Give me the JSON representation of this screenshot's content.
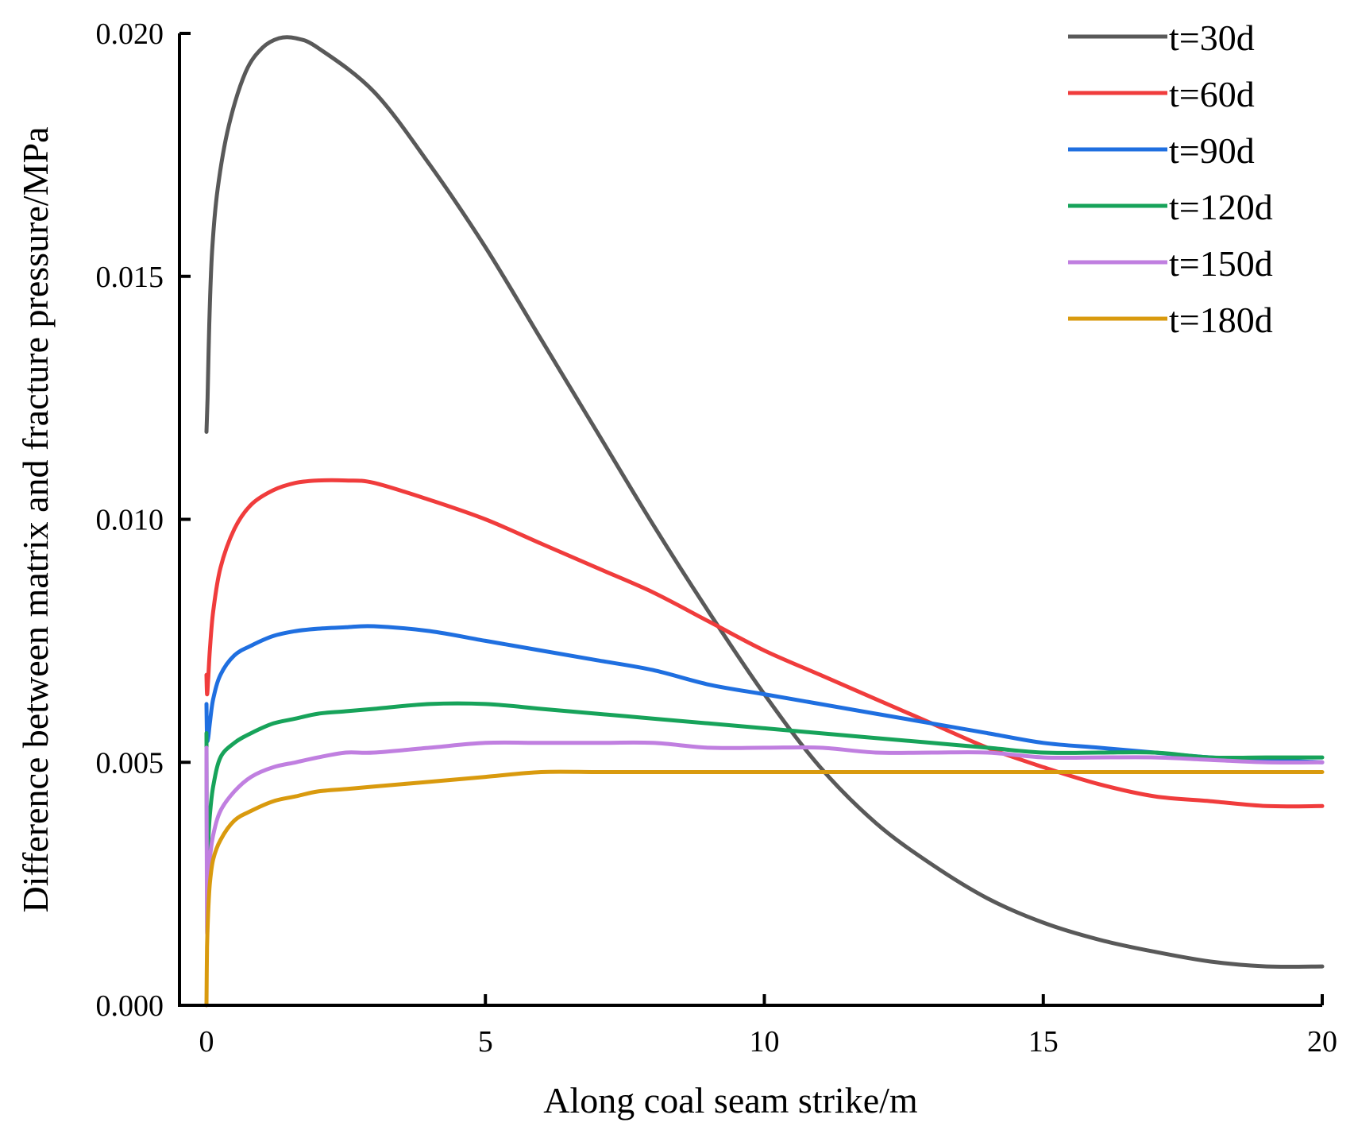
{
  "chart_data": {
    "type": "line",
    "title": "",
    "xlabel": "Along coal seam strike/m",
    "ylabel": "Difference between matrix and fracture pressure/MPa",
    "xlim": [
      -1,
      20
    ],
    "ylim": [
      0,
      0.02
    ],
    "xticks": [
      0,
      5,
      10,
      15,
      20
    ],
    "xtick_labels": [
      "0",
      "5",
      "10",
      "15",
      "20"
    ],
    "yticks": [
      0,
      0.005,
      0.01,
      0.015,
      0.02
    ],
    "ytick_labels": [
      "0.000",
      "0.005",
      "0.010",
      "0.015",
      "0.020"
    ],
    "legend_position": "top-right",
    "grid": false,
    "series": [
      {
        "name": "t=30d",
        "color": "#595959",
        "x": [
          0,
          0.02,
          0.05,
          0.1,
          0.2,
          0.4,
          0.7,
          1.0,
          1.3,
          1.6,
          2.0,
          3.0,
          4.0,
          5.0,
          6.0,
          7.0,
          8.0,
          9.0,
          10.0,
          11.0,
          12.0,
          13.0,
          14.0,
          15.0,
          16.0,
          17.0,
          18.0,
          19.0,
          20.0
        ],
        "y": [
          0.0118,
          0.0125,
          0.014,
          0.0155,
          0.0168,
          0.0181,
          0.0192,
          0.0197,
          0.0199,
          0.0199,
          0.0197,
          0.0188,
          0.0173,
          0.0156,
          0.0137,
          0.0118,
          0.0099,
          0.0081,
          0.0064,
          0.0049,
          0.00375,
          0.0029,
          0.0022,
          0.0017,
          0.00135,
          0.0011,
          0.0009,
          0.0008,
          0.0008
        ]
      },
      {
        "name": "t=60d",
        "color": "#f03c3c",
        "x": [
          0,
          0.01,
          0.03,
          0.06,
          0.12,
          0.25,
          0.5,
          0.8,
          1.2,
          1.6,
          2.0,
          2.5,
          3.0,
          4.0,
          5.0,
          6.0,
          7.0,
          8.0,
          9.0,
          10.0,
          11.0,
          12.0,
          13.0,
          14.0,
          15.0,
          16.0,
          17.0,
          18.0,
          19.0,
          20.0
        ],
        "y": [
          0.0068,
          0.0064,
          0.0067,
          0.0073,
          0.0081,
          0.009,
          0.0098,
          0.0103,
          0.0106,
          0.01075,
          0.0108,
          0.0108,
          0.01075,
          0.0104,
          0.01,
          0.0095,
          0.009,
          0.0085,
          0.0079,
          0.0073,
          0.0068,
          0.0063,
          0.0058,
          0.0053,
          0.0049,
          0.00455,
          0.0043,
          0.0042,
          0.0041,
          0.0041
        ]
      },
      {
        "name": "t=90d",
        "color": "#1f6fe0",
        "x": [
          0,
          0.01,
          0.03,
          0.06,
          0.12,
          0.25,
          0.5,
          0.8,
          1.2,
          1.6,
          2.0,
          2.5,
          3.0,
          4.0,
          5.0,
          6.0,
          7.0,
          8.0,
          9.0,
          10.0,
          11.0,
          12.0,
          13.0,
          14.0,
          15.0,
          16.0,
          17.0,
          18.0,
          19.0,
          20.0
        ],
        "y": [
          0.0062,
          0.0055,
          0.0055,
          0.0058,
          0.0063,
          0.0068,
          0.0072,
          0.0074,
          0.0076,
          0.0077,
          0.00775,
          0.00778,
          0.0078,
          0.0077,
          0.0075,
          0.0073,
          0.0071,
          0.0069,
          0.0066,
          0.0064,
          0.0062,
          0.006,
          0.0058,
          0.0056,
          0.0054,
          0.0053,
          0.0052,
          0.0051,
          0.00505,
          0.005
        ]
      },
      {
        "name": "t=120d",
        "color": "#17a35a",
        "x": [
          0,
          0.01,
          0.03,
          0.06,
          0.12,
          0.25,
          0.5,
          0.8,
          1.2,
          1.6,
          2.0,
          2.5,
          3.0,
          4.0,
          5.0,
          6.0,
          7.0,
          8.0,
          9.0,
          10.0,
          11.0,
          12.0,
          13.0,
          14.0,
          15.0,
          16.0,
          17.0,
          18.0,
          19.0,
          20.0
        ],
        "y": [
          0.0056,
          0.0025,
          0.0033,
          0.0039,
          0.0045,
          0.0051,
          0.0054,
          0.0056,
          0.0058,
          0.0059,
          0.006,
          0.00605,
          0.0061,
          0.0062,
          0.0062,
          0.0061,
          0.006,
          0.0059,
          0.0058,
          0.0057,
          0.0056,
          0.0055,
          0.0054,
          0.0053,
          0.0052,
          0.0052,
          0.0052,
          0.0051,
          0.0051,
          0.0051
        ]
      },
      {
        "name": "t=150d",
        "color": "#c07fe0",
        "x": [
          0,
          0.01,
          0.03,
          0.06,
          0.12,
          0.25,
          0.5,
          0.8,
          1.2,
          1.6,
          2.0,
          2.5,
          3.0,
          4.0,
          5.0,
          6.0,
          7.0,
          8.0,
          9.0,
          10.0,
          11.0,
          12.0,
          13.0,
          14.0,
          15.0,
          16.0,
          17.0,
          18.0,
          19.0,
          20.0
        ],
        "y": [
          0.0053,
          0.0016,
          0.0024,
          0.003,
          0.0035,
          0.004,
          0.0044,
          0.0047,
          0.0049,
          0.005,
          0.0051,
          0.0052,
          0.0052,
          0.0053,
          0.0054,
          0.0054,
          0.0054,
          0.0054,
          0.0053,
          0.0053,
          0.0053,
          0.0052,
          0.0052,
          0.0052,
          0.0051,
          0.0051,
          0.0051,
          0.00505,
          0.005,
          0.005
        ]
      },
      {
        "name": "t=180d",
        "color": "#d99a0e",
        "x": [
          0,
          0.01,
          0.03,
          0.06,
          0.12,
          0.25,
          0.5,
          0.8,
          1.2,
          1.6,
          2.0,
          2.5,
          3.0,
          4.0,
          5.0,
          6.0,
          7.0,
          8.0,
          9.0,
          10.0,
          11.0,
          12.0,
          13.0,
          14.0,
          15.0,
          16.0,
          17.0,
          18.0,
          19.0,
          20.0
        ],
        "y": [
          0.0,
          0.0012,
          0.0019,
          0.0025,
          0.003,
          0.0034,
          0.0038,
          0.004,
          0.0042,
          0.0043,
          0.0044,
          0.00445,
          0.0045,
          0.0046,
          0.0047,
          0.0048,
          0.0048,
          0.0048,
          0.0048,
          0.0048,
          0.0048,
          0.0048,
          0.0048,
          0.0048,
          0.0048,
          0.0048,
          0.0048,
          0.0048,
          0.0048,
          0.0048
        ]
      }
    ]
  }
}
